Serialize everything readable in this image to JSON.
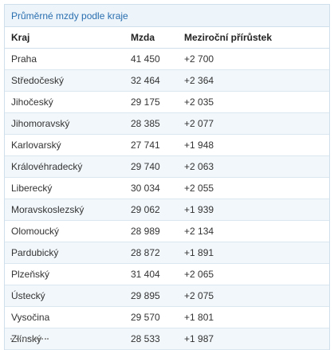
{
  "table": {
    "title": "Průměrné mzdy podle kraje",
    "headers": {
      "kraj": "Kraj",
      "mzda": "Mzda",
      "prirustek": "Meziroční přírůstek"
    },
    "rows": [
      {
        "kraj": "Praha",
        "mzda": "41 450",
        "prirustek": "+2 700"
      },
      {
        "kraj": "Středočeský",
        "mzda": "32 464",
        "prirustek": "+2 364"
      },
      {
        "kraj": "Jihočeský",
        "mzda": "29 175",
        "prirustek": "+2 035"
      },
      {
        "kraj": "Jihomoravský",
        "mzda": "28 385",
        "prirustek": "+2 077"
      },
      {
        "kraj": "Karlovarský",
        "mzda": "27 741",
        "prirustek": "+1 948"
      },
      {
        "kraj": "Královéhradecký",
        "mzda": "29 740",
        "prirustek": "+2 063"
      },
      {
        "kraj": "Liberecký",
        "mzda": "30 034",
        "prirustek": "+2 055"
      },
      {
        "kraj": "Moravskoslezský",
        "mzda": "29 062",
        "prirustek": "+1 939"
      },
      {
        "kraj": "Olomoucký",
        "mzda": "28 989",
        "prirustek": "+2 134"
      },
      {
        "kraj": "Pardubický",
        "mzda": "28 872",
        "prirustek": "+1 891"
      },
      {
        "kraj": "Plzeňský",
        "mzda": "31 404",
        "prirustek": "+2 065"
      },
      {
        "kraj": "Ústecký",
        "mzda": "29 895",
        "prirustek": "+2 075"
      },
      {
        "kraj": "Vysočina",
        "mzda": "29 570",
        "prirustek": "+1 801"
      },
      {
        "kraj": "Zlínský",
        "mzda": "28 533",
        "prirustek": "+1 987"
      }
    ]
  },
  "colors": {
    "title_text": "#2a6fb0",
    "title_background": "#edf4fa",
    "row_stripe": "#f2f7fb",
    "border": "#cfe0ec"
  }
}
